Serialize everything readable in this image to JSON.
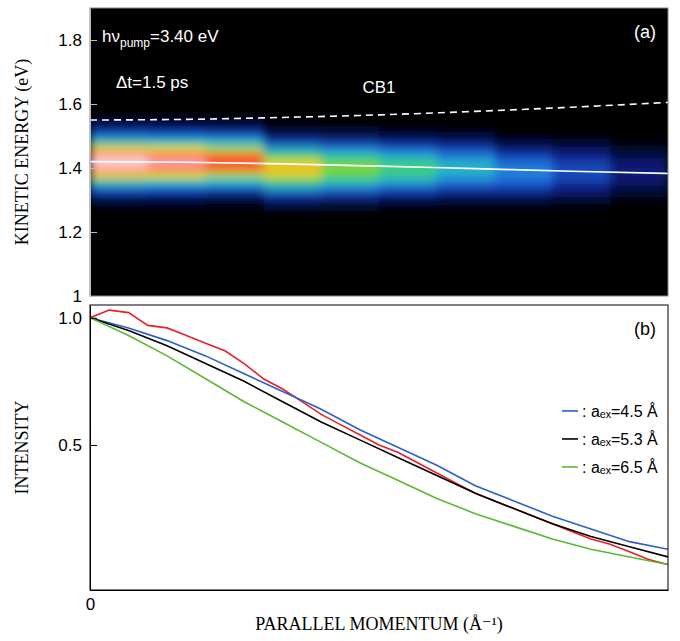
{
  "chart_data": [
    {
      "type": "heatmap",
      "label": "(a)",
      "ylabel": "KINETIC ENERGY (eV)",
      "xlim": [
        0,
        0.3
      ],
      "ylim": [
        1,
        1.9
      ],
      "yticks": [
        1,
        1.2,
        1.4,
        1.6,
        1.8
      ],
      "tick_labels": "y",
      "annotations": [
        {
          "text": "hν",
          "subscript": "pump",
          "text_after": "=3.40 eV"
        },
        {
          "text": "Δt=1.5 ps"
        }
      ],
      "heatmap": {
        "x_edges": [
          0,
          0.03,
          0.06,
          0.09,
          0.12,
          0.15,
          0.18,
          0.21,
          0.24,
          0.27,
          0.3
        ],
        "y_edges": [
          1.25,
          1.27,
          1.29,
          1.31,
          1.33,
          1.35,
          1.37,
          1.39,
          1.41,
          1.43,
          1.45,
          1.47,
          1.49,
          1.51,
          1.53,
          1.55,
          1.57
        ],
        "z": [
          [
            0,
            0,
            0,
            0.01,
            0,
            0,
            0,
            0,
            0,
            0
          ],
          [
            0.01,
            0.01,
            0.01,
            0.02,
            0.02,
            0.01,
            0.01,
            0.01,
            0.01,
            0
          ],
          [
            0.03,
            0.03,
            0.02,
            0.06,
            0.05,
            0.04,
            0.03,
            0.03,
            0.02,
            0.01
          ],
          [
            0.09,
            0.08,
            0.07,
            0.14,
            0.12,
            0.09,
            0.07,
            0.07,
            0.05,
            0.02
          ],
          [
            0.21,
            0.2,
            0.18,
            0.29,
            0.23,
            0.18,
            0.14,
            0.13,
            0.08,
            0.04
          ],
          [
            0.41,
            0.39,
            0.35,
            0.47,
            0.38,
            0.3,
            0.22,
            0.19,
            0.12,
            0.06
          ],
          [
            0.67,
            0.64,
            0.57,
            0.63,
            0.51,
            0.41,
            0.3,
            0.23,
            0.15,
            0.07
          ],
          [
            0.91,
            0.86,
            0.77,
            0.7,
            0.56,
            0.45,
            0.33,
            0.23,
            0.15,
            0.07
          ],
          [
            1.0,
            0.95,
            0.85,
            0.63,
            0.51,
            0.41,
            0.3,
            0.19,
            0.12,
            0.06
          ],
          [
            0.91,
            0.86,
            0.77,
            0.47,
            0.38,
            0.3,
            0.22,
            0.13,
            0.08,
            0.04
          ],
          [
            0.67,
            0.64,
            0.57,
            0.29,
            0.23,
            0.18,
            0.14,
            0.07,
            0.05,
            0.02
          ],
          [
            0.41,
            0.39,
            0.35,
            0.14,
            0.12,
            0.09,
            0.07,
            0.03,
            0.02,
            0.01
          ],
          [
            0.21,
            0.2,
            0.18,
            0.06,
            0.05,
            0.04,
            0.03,
            0.01,
            0.01,
            0
          ],
          [
            0.09,
            0.08,
            0.07,
            0.02,
            0.02,
            0.01,
            0.01,
            0,
            0,
            0
          ],
          [
            0.03,
            0.03,
            0.02,
            0.01,
            0,
            0,
            0,
            0,
            0,
            0
          ],
          [
            0.01,
            0.01,
            0.01,
            0,
            0,
            0,
            0,
            0,
            0,
            0
          ]
        ],
        "zlim": [
          0,
          1
        ]
      },
      "series": [
        {
          "name": "CB1",
          "x": [
            0,
            0.05,
            0.1,
            0.15,
            0.2,
            0.25,
            0.3
          ],
          "values": [
            1.55,
            1.552,
            1.558,
            1.566,
            1.577,
            1.59,
            1.605
          ],
          "color": "#ffffff",
          "line_style": "dashed"
        },
        {
          "x": [
            0,
            0.05,
            0.1,
            0.15,
            0.2,
            0.25,
            0.3
          ],
          "values": [
            1.42,
            1.418,
            1.413,
            1.406,
            1.398,
            1.39,
            1.383
          ],
          "color": "#ffffff",
          "line_style": "solid"
        }
      ]
    },
    {
      "type": "line",
      "label": "(b)",
      "xlabel": "PARALLEL MOMENTUM (Å⁻¹)",
      "ylabel": "INTENSITY",
      "xlim": [
        0,
        0.3
      ],
      "ylim": [
        -0.07,
        1.05
      ],
      "xticks": [
        0
      ],
      "yticks": [
        0.5,
        {
          "value": 1,
          "label": "1.0"
        }
      ],
      "legend": "right",
      "series": [
        {
          "x": [
            0,
            0.01,
            0.02,
            0.03,
            0.04,
            0.05,
            0.06,
            0.07,
            0.08,
            0.09,
            0.1,
            0.11,
            0.12,
            0.13,
            0.14,
            0.15,
            0.16,
            0.17,
            0.18,
            0.19,
            0.2,
            0.21,
            0.22,
            0.23,
            0.24,
            0.25,
            0.26,
            0.27,
            0.28,
            0.29,
            0.3
          ],
          "values": [
            1.0,
            1.03,
            1.02,
            0.97,
            0.96,
            0.93,
            0.9,
            0.87,
            0.82,
            0.76,
            0.72,
            0.67,
            0.62,
            0.58,
            0.54,
            0.5,
            0.47,
            0.43,
            0.39,
            0.35,
            0.31,
            0.28,
            0.25,
            0.22,
            0.19,
            0.16,
            0.13,
            0.11,
            0.08,
            0.05,
            0.03
          ],
          "color": "#e8202a"
        },
        {
          "name": ": aₑₓ=4.5 Å",
          "x": [
            0,
            0.02,
            0.04,
            0.06,
            0.08,
            0.1,
            0.12,
            0.14,
            0.16,
            0.18,
            0.2,
            0.22,
            0.24,
            0.26,
            0.28,
            0.3
          ],
          "values": [
            1.0,
            0.96,
            0.91,
            0.85,
            0.78,
            0.71,
            0.64,
            0.56,
            0.49,
            0.42,
            0.34,
            0.28,
            0.22,
            0.17,
            0.12,
            0.09
          ],
          "color": "#2c5fce"
        },
        {
          "name": ": aₑₓ=5.3 Å",
          "x": [
            0,
            0.02,
            0.04,
            0.06,
            0.08,
            0.1,
            0.12,
            0.14,
            0.16,
            0.18,
            0.2,
            0.22,
            0.24,
            0.26,
            0.28,
            0.3
          ],
          "values": [
            1.0,
            0.95,
            0.89,
            0.82,
            0.75,
            0.67,
            0.59,
            0.52,
            0.45,
            0.38,
            0.31,
            0.25,
            0.19,
            0.14,
            0.1,
            0.06
          ],
          "color": "#000000"
        },
        {
          "name": ": aₑₓ=6.5 Å",
          "x": [
            0,
            0.02,
            0.04,
            0.06,
            0.08,
            0.1,
            0.12,
            0.14,
            0.16,
            0.18,
            0.2,
            0.22,
            0.24,
            0.26,
            0.28,
            0.3
          ],
          "values": [
            1.0,
            0.93,
            0.85,
            0.76,
            0.67,
            0.59,
            0.51,
            0.43,
            0.36,
            0.29,
            0.23,
            0.18,
            0.13,
            0.09,
            0.06,
            0.03
          ],
          "color": "#5cb832"
        }
      ]
    }
  ]
}
